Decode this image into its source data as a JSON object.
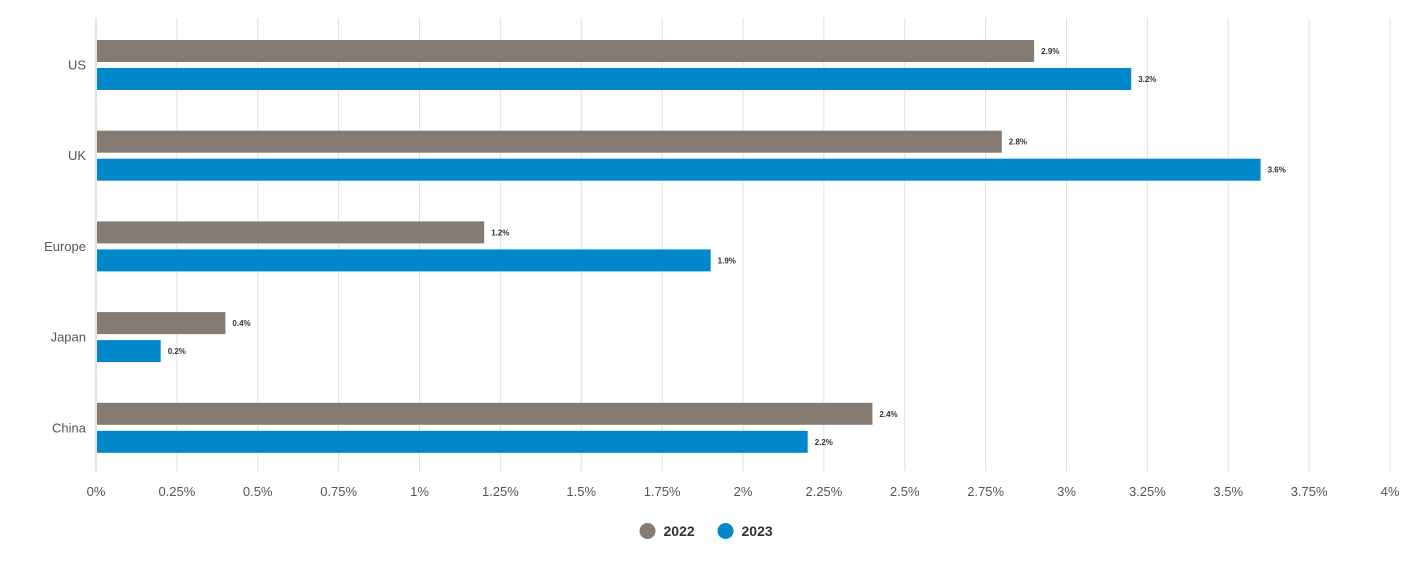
{
  "chart_data": {
    "type": "bar",
    "orientation": "horizontal",
    "categories": [
      "US",
      "UK",
      "Europe",
      "Japan",
      "China"
    ],
    "series": [
      {
        "name": "2022",
        "color": "#857b73",
        "values": [
          2.9,
          2.8,
          1.2,
          0.4,
          2.4
        ],
        "labels": [
          "2.9%",
          "2.8%",
          "1.2%",
          "0.4%",
          "2.4%"
        ]
      },
      {
        "name": "2023",
        "color": "#0088ca",
        "values": [
          3.2,
          3.6,
          1.9,
          0.2,
          2.2
        ],
        "labels": [
          "3.2%",
          "3.6%",
          "1.9%",
          "0.2%",
          "2.2%"
        ]
      }
    ],
    "x_ticks": [
      0,
      0.25,
      0.5,
      0.75,
      1,
      1.25,
      1.5,
      1.75,
      2,
      2.25,
      2.5,
      2.75,
      3,
      3.25,
      3.5,
      3.75,
      4
    ],
    "x_tick_labels": [
      "0%",
      "0.25%",
      "0.5%",
      "0.75%",
      "1%",
      "1.25%",
      "1.5%",
      "1.75%",
      "2%",
      "2.25%",
      "2.5%",
      "2.75%",
      "3%",
      "3.25%",
      "3.5%",
      "3.75%",
      "4%"
    ],
    "xlim": [
      0,
      4
    ],
    "grid": true,
    "legend": {
      "position": "bottom-center",
      "marker": "circle"
    },
    "title": "",
    "xlabel": "",
    "ylabel": ""
  }
}
